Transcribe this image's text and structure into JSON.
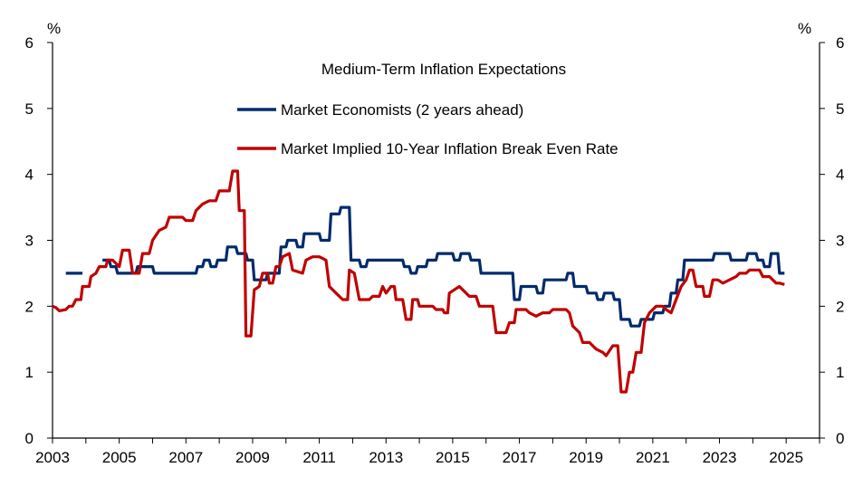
{
  "chart_data": {
    "type": "line",
    "title": "Medium-Term Inflation Expectations",
    "left_unit": "%",
    "right_unit": "%",
    "xlim": [
      2003,
      2026
    ],
    "ylim": [
      0,
      6
    ],
    "x_ticks": [
      2003,
      2005,
      2007,
      2009,
      2011,
      2013,
      2015,
      2017,
      2019,
      2021,
      2023,
      2025
    ],
    "x_tick_labels": [
      "2003",
      "2005",
      "2007",
      "2009",
      "2011",
      "2013",
      "2015",
      "2017",
      "2019",
      "2021",
      "2023",
      "2025"
    ],
    "y_ticks": [
      0,
      1,
      2,
      3,
      4,
      5,
      6
    ],
    "y_tick_labels": [
      "0",
      "1",
      "2",
      "3",
      "4",
      "5",
      "6"
    ],
    "grid": false,
    "legend_position": "top-center",
    "series": [
      {
        "name": "Market Economists (2 years ahead)",
        "color": "#002B6B",
        "segments": [
          [
            [
              2003.4,
              2.5
            ],
            [
              2003.9,
              2.5
            ]
          ],
          [
            [
              2004.5,
              2.7
            ],
            [
              2004.7,
              2.7
            ],
            [
              2004.75,
              2.6
            ],
            [
              2004.9,
              2.6
            ],
            [
              2004.95,
              2.5
            ],
            [
              2005.5,
              2.5
            ],
            [
              2005.55,
              2.6
            ],
            [
              2006.0,
              2.6
            ],
            [
              2006.05,
              2.5
            ],
            [
              2007.3,
              2.5
            ],
            [
              2007.35,
              2.6
            ],
            [
              2007.5,
              2.6
            ],
            [
              2007.55,
              2.7
            ],
            [
              2007.7,
              2.7
            ],
            [
              2007.75,
              2.6
            ],
            [
              2007.9,
              2.6
            ],
            [
              2007.95,
              2.7
            ],
            [
              2008.2,
              2.7
            ],
            [
              2008.25,
              2.9
            ],
            [
              2008.5,
              2.9
            ],
            [
              2008.55,
              2.8
            ],
            [
              2008.8,
              2.8
            ],
            [
              2008.85,
              2.7
            ],
            [
              2009.0,
              2.7
            ],
            [
              2009.05,
              2.4
            ],
            [
              2009.4,
              2.4
            ],
            [
              2009.45,
              2.5
            ],
            [
              2009.8,
              2.5
            ],
            [
              2009.85,
              2.9
            ],
            [
              2010.0,
              2.9
            ],
            [
              2010.05,
              3.0
            ],
            [
              2010.3,
              3.0
            ],
            [
              2010.35,
              2.9
            ],
            [
              2010.5,
              2.9
            ],
            [
              2010.55,
              3.1
            ],
            [
              2011.0,
              3.1
            ],
            [
              2011.05,
              3.0
            ],
            [
              2011.3,
              3.0
            ],
            [
              2011.35,
              3.4
            ],
            [
              2011.6,
              3.4
            ],
            [
              2011.65,
              3.5
            ],
            [
              2011.9,
              3.5
            ],
            [
              2011.95,
              2.7
            ],
            [
              2012.2,
              2.7
            ],
            [
              2012.25,
              2.6
            ],
            [
              2012.4,
              2.6
            ],
            [
              2012.45,
              2.7
            ],
            [
              2013.5,
              2.7
            ],
            [
              2013.55,
              2.6
            ],
            [
              2013.7,
              2.6
            ],
            [
              2013.75,
              2.5
            ],
            [
              2013.9,
              2.5
            ],
            [
              2013.95,
              2.6
            ],
            [
              2014.2,
              2.6
            ],
            [
              2014.25,
              2.7
            ],
            [
              2014.5,
              2.7
            ],
            [
              2014.55,
              2.8
            ],
            [
              2015.0,
              2.8
            ],
            [
              2015.05,
              2.7
            ],
            [
              2015.2,
              2.7
            ],
            [
              2015.25,
              2.8
            ],
            [
              2015.5,
              2.8
            ],
            [
              2015.55,
              2.7
            ],
            [
              2015.8,
              2.7
            ],
            [
              2015.85,
              2.5
            ],
            [
              2016.8,
              2.5
            ],
            [
              2016.85,
              2.1
            ],
            [
              2017.0,
              2.1
            ],
            [
              2017.05,
              2.3
            ],
            [
              2017.5,
              2.3
            ],
            [
              2017.55,
              2.2
            ],
            [
              2017.7,
              2.2
            ],
            [
              2017.75,
              2.4
            ],
            [
              2018.4,
              2.4
            ],
            [
              2018.45,
              2.5
            ],
            [
              2018.6,
              2.5
            ],
            [
              2018.65,
              2.3
            ],
            [
              2019.0,
              2.3
            ],
            [
              2019.05,
              2.2
            ],
            [
              2019.3,
              2.2
            ],
            [
              2019.35,
              2.1
            ],
            [
              2019.5,
              2.1
            ],
            [
              2019.55,
              2.2
            ],
            [
              2019.8,
              2.2
            ],
            [
              2019.85,
              2.1
            ],
            [
              2020.0,
              2.1
            ],
            [
              2020.05,
              1.8
            ],
            [
              2020.3,
              1.8
            ],
            [
              2020.35,
              1.7
            ],
            [
              2020.6,
              1.7
            ],
            [
              2020.65,
              1.8
            ],
            [
              2021.0,
              1.8
            ],
            [
              2021.05,
              1.9
            ],
            [
              2021.3,
              1.9
            ],
            [
              2021.35,
              2.0
            ],
            [
              2021.5,
              2.0
            ],
            [
              2021.55,
              2.2
            ],
            [
              2021.7,
              2.2
            ],
            [
              2021.75,
              2.4
            ],
            [
              2021.9,
              2.4
            ],
            [
              2021.95,
              2.7
            ],
            [
              2022.8,
              2.7
            ],
            [
              2022.85,
              2.8
            ],
            [
              2023.3,
              2.8
            ],
            [
              2023.35,
              2.7
            ],
            [
              2023.8,
              2.7
            ],
            [
              2023.85,
              2.8
            ],
            [
              2024.1,
              2.8
            ],
            [
              2024.15,
              2.7
            ],
            [
              2024.3,
              2.7
            ],
            [
              2024.35,
              2.6
            ],
            [
              2024.5,
              2.6
            ],
            [
              2024.55,
              2.8
            ],
            [
              2024.75,
              2.8
            ],
            [
              2024.8,
              2.5
            ],
            [
              2024.95,
              2.5
            ]
          ]
        ]
      },
      {
        "name": "Market Implied 10-Year Inflation Break Even Rate",
        "color": "#C00000",
        "segments": [
          [
            [
              2003.0,
              2.0
            ],
            [
              2003.1,
              1.98
            ],
            [
              2003.2,
              1.93
            ],
            [
              2003.4,
              1.95
            ],
            [
              2003.5,
              2.0
            ],
            [
              2003.6,
              2.0
            ],
            [
              2003.7,
              2.1
            ],
            [
              2003.85,
              2.1
            ],
            [
              2003.9,
              2.3
            ],
            [
              2004.1,
              2.3
            ],
            [
              2004.15,
              2.45
            ],
            [
              2004.3,
              2.5
            ],
            [
              2004.4,
              2.6
            ],
            [
              2004.6,
              2.6
            ],
            [
              2004.65,
              2.7
            ],
            [
              2004.8,
              2.7
            ],
            [
              2004.9,
              2.65
            ],
            [
              2005.0,
              2.6
            ],
            [
              2005.1,
              2.85
            ],
            [
              2005.3,
              2.85
            ],
            [
              2005.4,
              2.5
            ],
            [
              2005.6,
              2.5
            ],
            [
              2005.7,
              2.8
            ],
            [
              2005.9,
              2.8
            ],
            [
              2006.0,
              3.0
            ],
            [
              2006.2,
              3.15
            ],
            [
              2006.4,
              3.2
            ],
            [
              2006.5,
              3.35
            ],
            [
              2006.9,
              3.35
            ],
            [
              2007.0,
              3.3
            ],
            [
              2007.2,
              3.3
            ],
            [
              2007.3,
              3.45
            ],
            [
              2007.5,
              3.55
            ],
            [
              2007.7,
              3.6
            ],
            [
              2007.9,
              3.6
            ],
            [
              2008.0,
              3.75
            ],
            [
              2008.3,
              3.75
            ],
            [
              2008.4,
              4.05
            ],
            [
              2008.55,
              4.05
            ],
            [
              2008.6,
              3.45
            ],
            [
              2008.75,
              3.45
            ],
            [
              2008.8,
              1.55
            ],
            [
              2008.95,
              1.55
            ],
            [
              2009.05,
              2.25
            ],
            [
              2009.2,
              2.3
            ],
            [
              2009.3,
              2.5
            ],
            [
              2009.45,
              2.5
            ],
            [
              2009.5,
              2.35
            ],
            [
              2009.6,
              2.35
            ],
            [
              2009.7,
              2.6
            ],
            [
              2009.8,
              2.6
            ],
            [
              2009.9,
              2.75
            ],
            [
              2010.1,
              2.8
            ],
            [
              2010.2,
              2.55
            ],
            [
              2010.5,
              2.5
            ],
            [
              2010.6,
              2.7
            ],
            [
              2010.8,
              2.75
            ],
            [
              2011.0,
              2.75
            ],
            [
              2011.2,
              2.7
            ],
            [
              2011.3,
              2.3
            ],
            [
              2011.5,
              2.2
            ],
            [
              2011.7,
              2.1
            ],
            [
              2011.85,
              2.1
            ],
            [
              2011.9,
              2.55
            ],
            [
              2012.05,
              2.5
            ],
            [
              2012.2,
              2.1
            ],
            [
              2012.5,
              2.1
            ],
            [
              2012.6,
              2.15
            ],
            [
              2012.8,
              2.15
            ],
            [
              2012.9,
              2.3
            ],
            [
              2013.0,
              2.2
            ],
            [
              2013.15,
              2.3
            ],
            [
              2013.25,
              2.3
            ],
            [
              2013.3,
              2.1
            ],
            [
              2013.5,
              2.1
            ],
            [
              2013.6,
              1.8
            ],
            [
              2013.75,
              1.8
            ],
            [
              2013.8,
              2.1
            ],
            [
              2013.95,
              2.1
            ],
            [
              2014.0,
              2.0
            ],
            [
              2014.4,
              2.0
            ],
            [
              2014.5,
              1.95
            ],
            [
              2014.7,
              1.95
            ],
            [
              2014.75,
              1.9
            ],
            [
              2014.85,
              1.9
            ],
            [
              2014.9,
              2.2
            ],
            [
              2015.05,
              2.25
            ],
            [
              2015.2,
              2.3
            ],
            [
              2015.4,
              2.2
            ],
            [
              2015.5,
              2.15
            ],
            [
              2015.7,
              2.15
            ],
            [
              2015.8,
              2.0
            ],
            [
              2016.0,
              2.0
            ],
            [
              2016.2,
              2.0
            ],
            [
              2016.3,
              1.6
            ],
            [
              2016.6,
              1.6
            ],
            [
              2016.7,
              1.75
            ],
            [
              2016.85,
              1.75
            ],
            [
              2016.9,
              1.95
            ],
            [
              2017.2,
              1.95
            ],
            [
              2017.3,
              1.9
            ],
            [
              2017.5,
              1.85
            ],
            [
              2017.7,
              1.9
            ],
            [
              2017.9,
              1.9
            ],
            [
              2018.0,
              1.95
            ],
            [
              2018.4,
              1.95
            ],
            [
              2018.5,
              1.9
            ],
            [
              2018.6,
              1.7
            ],
            [
              2018.8,
              1.6
            ],
            [
              2018.9,
              1.45
            ],
            [
              2019.1,
              1.45
            ],
            [
              2019.3,
              1.35
            ],
            [
              2019.5,
              1.3
            ],
            [
              2019.6,
              1.25
            ],
            [
              2019.8,
              1.4
            ],
            [
              2019.95,
              1.4
            ],
            [
              2020.05,
              0.7
            ],
            [
              2020.2,
              0.7
            ],
            [
              2020.3,
              1.0
            ],
            [
              2020.4,
              1.0
            ],
            [
              2020.5,
              1.3
            ],
            [
              2020.65,
              1.3
            ],
            [
              2020.75,
              1.75
            ],
            [
              2020.9,
              1.9
            ],
            [
              2021.1,
              2.0
            ],
            [
              2021.3,
              2.0
            ],
            [
              2021.4,
              1.95
            ],
            [
              2021.55,
              1.9
            ],
            [
              2021.7,
              2.1
            ],
            [
              2021.85,
              2.3
            ],
            [
              2022.0,
              2.4
            ],
            [
              2022.1,
              2.55
            ],
            [
              2022.2,
              2.55
            ],
            [
              2022.3,
              2.3
            ],
            [
              2022.5,
              2.3
            ],
            [
              2022.55,
              2.15
            ],
            [
              2022.7,
              2.15
            ],
            [
              2022.8,
              2.4
            ],
            [
              2022.95,
              2.4
            ],
            [
              2023.1,
              2.35
            ],
            [
              2023.3,
              2.4
            ],
            [
              2023.5,
              2.45
            ],
            [
              2023.6,
              2.5
            ],
            [
              2023.8,
              2.5
            ],
            [
              2023.9,
              2.55
            ],
            [
              2024.2,
              2.55
            ],
            [
              2024.3,
              2.45
            ],
            [
              2024.5,
              2.45
            ],
            [
              2024.6,
              2.4
            ],
            [
              2024.7,
              2.35
            ],
            [
              2024.8,
              2.35
            ],
            [
              2024.95,
              2.33
            ]
          ]
        ]
      }
    ]
  }
}
